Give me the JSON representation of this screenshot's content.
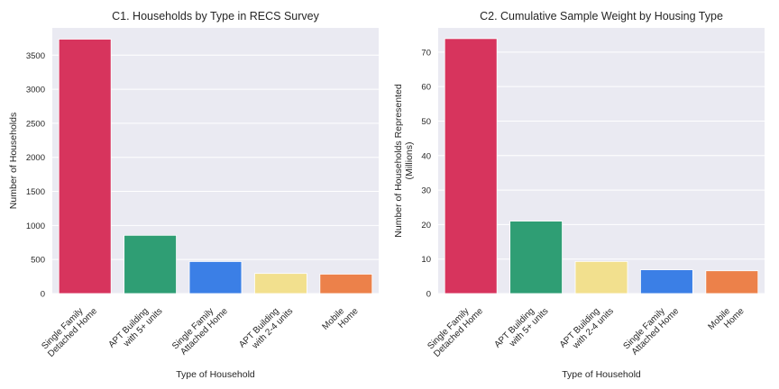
{
  "chart_data": [
    {
      "type": "bar",
      "title": "C1. Households by Type in RECS Survey",
      "xlabel": "Type of Household",
      "ylabel": [
        "Number of Households"
      ],
      "ylim": [
        0,
        3900
      ],
      "yticks": [
        0,
        500,
        1000,
        1500,
        2000,
        2500,
        3000,
        3500
      ],
      "categories": [
        [
          "Single Family",
          "Detached Home"
        ],
        [
          "APT Building",
          "with 5+ units"
        ],
        [
          "Single Family",
          "Attached Home"
        ],
        [
          "APT Building",
          "with 2-4 units"
        ],
        [
          "Mobile",
          "Home"
        ]
      ],
      "values": [
        3735,
        855,
        470,
        295,
        285
      ],
      "colors": [
        "#d7345d",
        "#2f9e74",
        "#3b7fe6",
        "#f2e08e",
        "#ec814a"
      ],
      "grid": true
    },
    {
      "type": "bar",
      "title": "C2. Cumulative Sample Weight by Housing Type",
      "xlabel": "Type of Household",
      "ylabel": [
        "Number of Households Represented",
        "(Millions)"
      ],
      "ylim": [
        0,
        77
      ],
      "yticks": [
        0,
        10,
        20,
        30,
        40,
        50,
        60,
        70
      ],
      "categories": [
        [
          "Single Family",
          "Detached Home"
        ],
        [
          "APT Building",
          "with 5+ units"
        ],
        [
          "APT Building",
          "with 2-4 units"
        ],
        [
          "Single Family",
          "Attached Home"
        ],
        [
          "Mobile",
          "Home"
        ]
      ],
      "values": [
        73.9,
        21.0,
        9.3,
        6.9,
        6.6
      ],
      "colors": [
        "#d7345d",
        "#2f9e74",
        "#f2e08e",
        "#3b7fe6",
        "#ec814a"
      ],
      "grid": true
    }
  ]
}
